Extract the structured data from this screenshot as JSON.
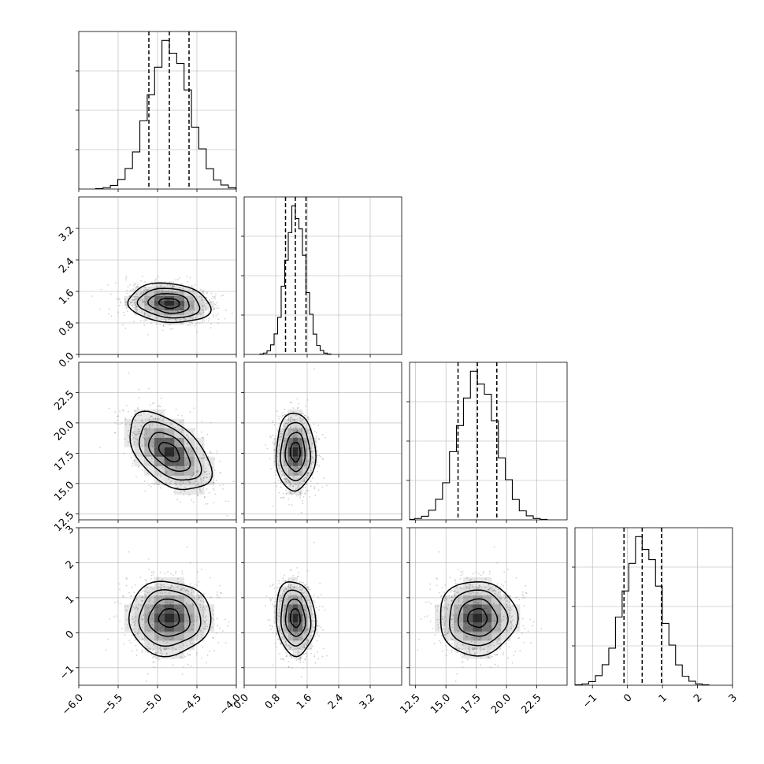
{
  "chart_data": {
    "type": "corner",
    "parameters": [
      {
        "range": [
          -6.0,
          -4.0
        ],
        "ticks": [
          -6.0,
          -5.5,
          -5.0,
          -4.5,
          -4.0
        ],
        "tick_labels": [
          "−6.0",
          "−5.5",
          "−5.0",
          "−4.5",
          "−4.0"
        ],
        "mean": -4.85,
        "std": 0.26,
        "quantiles": [
          -5.11,
          -4.85,
          -4.6
        ]
      },
      {
        "range": [
          0.0,
          4.0
        ],
        "ticks": [
          0.0,
          0.8,
          1.6,
          2.4,
          3.2
        ],
        "tick_labels": [
          "0.0",
          "0.8",
          "1.6",
          "2.4",
          "3.2"
        ],
        "mean": 1.3,
        "std": 0.25,
        "quantiles": [
          1.05,
          1.3,
          1.57
        ]
      },
      {
        "range": [
          12.0,
          25.0
        ],
        "ticks": [
          12.5,
          15.0,
          17.5,
          20.0,
          22.5
        ],
        "tick_labels": [
          "12.5",
          "15.0",
          "17.5",
          "20.0",
          "22.5"
        ],
        "mean": 17.6,
        "std": 1.6,
        "quantiles": [
          16.0,
          17.6,
          19.2
        ]
      },
      {
        "range": [
          -1.5,
          3.0
        ],
        "ticks": [
          -1,
          0,
          1,
          2,
          3
        ],
        "tick_labels": [
          "−1",
          "0",
          "1",
          "2",
          "3"
        ],
        "mean": 0.42,
        "std": 0.53,
        "quantiles": [
          -0.1,
          0.42,
          0.97
        ]
      }
    ],
    "correlations": {
      "1-0": -0.15,
      "2-0": -0.5,
      "2-1": 0.0,
      "3-0": 0.0,
      "3-1": -0.1,
      "3-2": 0.0
    },
    "histogram_bins": 20,
    "contour_levels_sigma": [
      0.5,
      1.0,
      1.5,
      2.0
    ],
    "grid": true,
    "colors": {
      "line": "#000000",
      "points": "#7a7a7a",
      "grid": "#b0b0b0",
      "density": "#000000"
    }
  }
}
